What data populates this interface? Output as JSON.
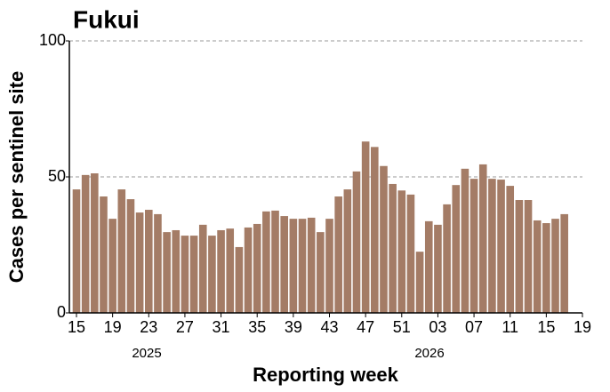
{
  "chart_data": {
    "type": "bar",
    "title": "Fukui",
    "y_label": "Cases per sentinel site",
    "x_label": "Reporting week",
    "x_group_labels": [
      "2025",
      "2026"
    ],
    "categories": [
      "15",
      null,
      null,
      null,
      "19",
      null,
      null,
      null,
      "23",
      null,
      null,
      null,
      "27",
      null,
      null,
      null,
      "31",
      null,
      null,
      null,
      "35",
      null,
      null,
      null,
      "39",
      null,
      null,
      null,
      "43",
      null,
      null,
      null,
      "47",
      null,
      null,
      null,
      "51",
      null,
      null,
      null,
      "03",
      null,
      null,
      null,
      "07",
      null,
      null,
      null,
      "11",
      null,
      null,
      null,
      "15",
      null,
      null,
      null,
      "19"
    ],
    "values": [
      45.4,
      50.7,
      51.3,
      42.8,
      34.6,
      45.4,
      41.8,
      36.9,
      37.9,
      36.3,
      29.7,
      30.4,
      28.4,
      28.4,
      32.4,
      28.4,
      30.4,
      31,
      24.2,
      31.4,
      32.7,
      37.3,
      37.6,
      35.6,
      34.6,
      34.6,
      35,
      29.7,
      34.6,
      42.8,
      45.4,
      52,
      63,
      61,
      54,
      47.4,
      45,
      43.5,
      22.5,
      33.7,
      32.4,
      39.9,
      47,
      53,
      49.3,
      54.6,
      49.3,
      49,
      46.7,
      41.5,
      41.5,
      34,
      33,
      34.6,
      36.3,
      null,
      null
    ],
    "color": "#a47c66",
    "ylim": [
      0,
      100
    ],
    "yticks": [
      0,
      50,
      100
    ],
    "grid": true
  }
}
